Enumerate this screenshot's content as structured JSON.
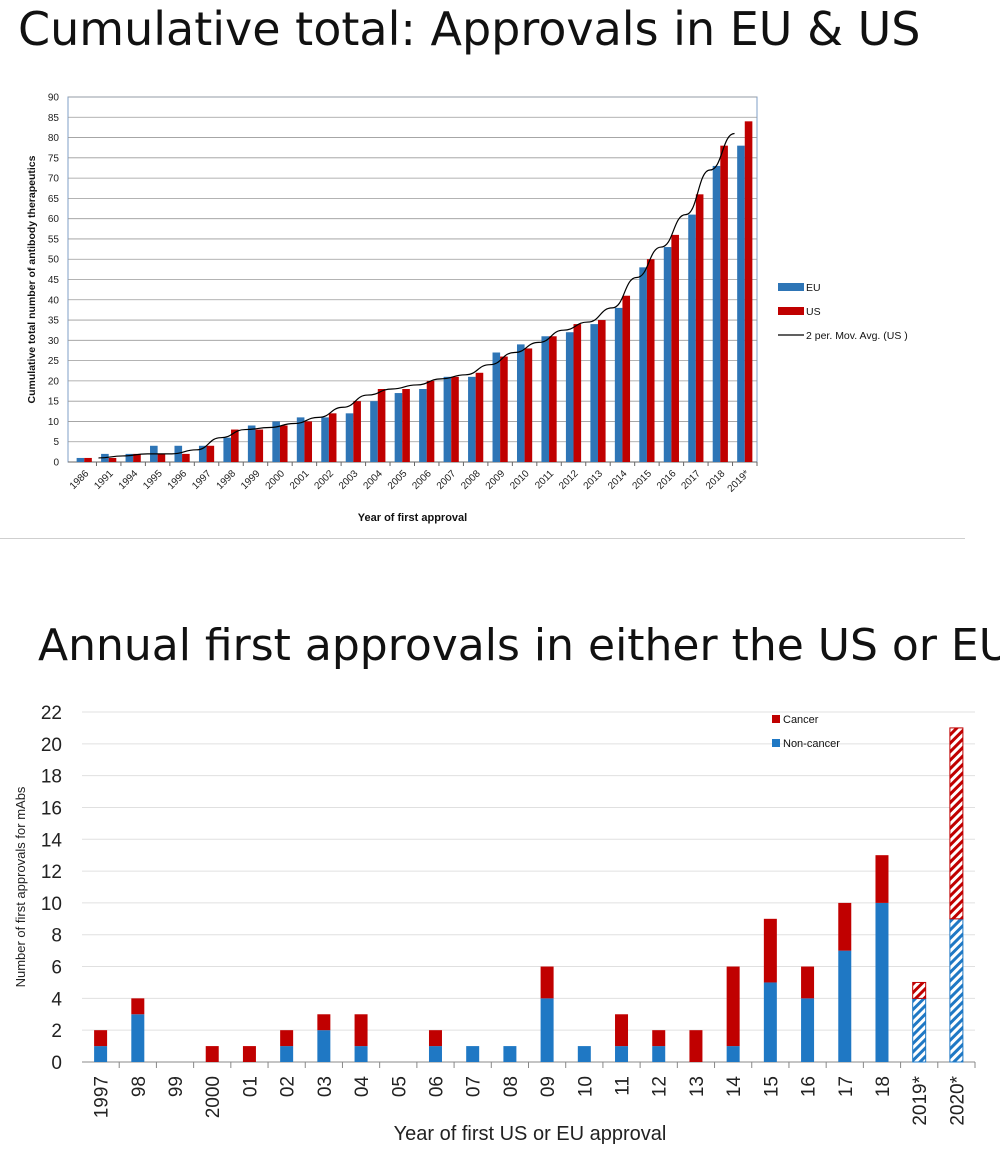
{
  "titles": {
    "top": "Cumulative total: Approvals in EU & US",
    "bottom": "Annual first approvals in either the US or EU"
  },
  "colors": {
    "eu": "#2e75b6",
    "us": "#c00000",
    "cancer": "#c00000",
    "noncancer": "#1f78c4",
    "grid": "#bfbfbf",
    "axis": "#808080"
  },
  "chart_data": [
    {
      "type": "bar",
      "title": "Cumulative total: Approvals in EU & US",
      "xlabel": "Year of first approval",
      "ylabel": "Cumulative total number of antibody therapeutics",
      "ylim": [
        0,
        90
      ],
      "yticks": [
        0,
        5,
        10,
        15,
        20,
        25,
        30,
        35,
        40,
        45,
        50,
        55,
        60,
        65,
        70,
        75,
        80,
        85,
        90
      ],
      "grid": true,
      "legend_position": "right",
      "categories": [
        "1986",
        "1991",
        "1994",
        "1995",
        "1996",
        "1997",
        "1998",
        "1999",
        "2000",
        "2001",
        "2002",
        "2003",
        "2004",
        "2005",
        "2006",
        "2007",
        "2008",
        "2009",
        "2010",
        "2011",
        "2012",
        "2013",
        "2014",
        "2015",
        "2016",
        "2017",
        "2018",
        "2019*"
      ],
      "series": [
        {
          "name": "EU",
          "values": [
            1,
            2,
            2,
            4,
            4,
            4,
            6,
            9,
            10,
            11,
            11,
            12,
            15,
            17,
            18,
            21,
            21,
            27,
            29,
            31,
            32,
            34,
            38,
            48,
            53,
            61,
            73,
            78
          ]
        },
        {
          "name": "US",
          "values": [
            1,
            1,
            2,
            2,
            2,
            4,
            8,
            8,
            9,
            10,
            12,
            15,
            18,
            18,
            20,
            21,
            22,
            26,
            28,
            31,
            34,
            35,
            41,
            50,
            56,
            66,
            78,
            84
          ]
        }
      ],
      "trendline": {
        "name": "2 per. Mov. Avg. (US )",
        "source_series": "US",
        "period": 2
      }
    },
    {
      "type": "bar",
      "stacked": true,
      "title": "Annual first approvals in either the US or EU",
      "xlabel": "Year of first US or EU approval",
      "ylabel": "Number of first approvals for mAbs",
      "ylim": [
        0,
        22
      ],
      "yticks": [
        0,
        2,
        4,
        6,
        8,
        10,
        12,
        14,
        16,
        18,
        20,
        22
      ],
      "grid": true,
      "legend_position": "top-right",
      "categories": [
        "1997",
        "98",
        "99",
        "2000",
        "01",
        "02",
        "03",
        "04",
        "05",
        "06",
        "07",
        "08",
        "09",
        "10",
        "11",
        "12",
        "13",
        "14",
        "15",
        "16",
        "17",
        "18",
        "2019*",
        "2020*"
      ],
      "hatched_categories": [
        "2019*",
        "2020*"
      ],
      "series": [
        {
          "name": "Non-cancer",
          "values": [
            1,
            3,
            0,
            0,
            0,
            1,
            2,
            1,
            0,
            1,
            1,
            1,
            4,
            1,
            1,
            1,
            0,
            1,
            5,
            4,
            7,
            10,
            4,
            9
          ]
        },
        {
          "name": "Cancer",
          "values": [
            1,
            1,
            0,
            1,
            1,
            1,
            1,
            2,
            0,
            1,
            0,
            0,
            2,
            0,
            2,
            1,
            2,
            5,
            4,
            2,
            3,
            3,
            1,
            12
          ]
        }
      ]
    }
  ]
}
